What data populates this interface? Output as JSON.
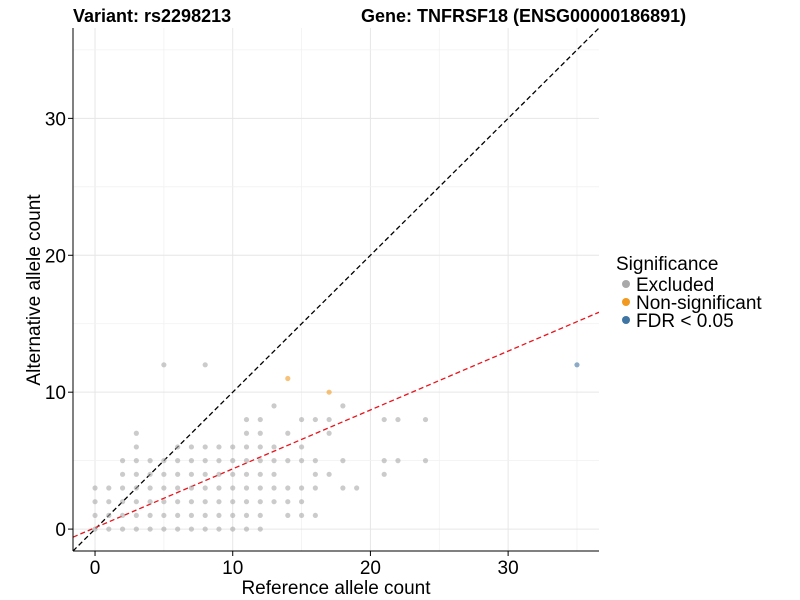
{
  "chart_data": {
    "type": "scatter",
    "title_left": "Variant: rs2298213",
    "title_right": "Gene: TNFRSF18 (ENSG00000186891)",
    "xlabel": "Reference allele count",
    "ylabel": "Alternative allele count",
    "xlim": [
      -1.6,
      36.6
    ],
    "ylim": [
      -1.6,
      36.6
    ],
    "xticks": [
      0,
      10,
      20,
      30
    ],
    "yticks": [
      0,
      10,
      20,
      30
    ],
    "grid": true,
    "legend": {
      "title": "Significance",
      "position": "right",
      "entries": [
        {
          "label": "Excluded",
          "color": "#a9a9a9"
        },
        {
          "label": "Non-significant",
          "color": "#f29a1f"
        },
        {
          "label": "FDR < 0.05",
          "color": "#3f75a3"
        }
      ]
    },
    "reference_lines": [
      {
        "name": "identity",
        "intercept": 0,
        "slope": 1,
        "color": "#000000",
        "style": "dashed"
      },
      {
        "name": "fit",
        "intercept": 0.1,
        "slope": 0.43,
        "color": "#e8141b",
        "style": "dashed"
      }
    ],
    "series": [
      {
        "name": "Excluded",
        "color": "#a9a9a9",
        "points": [
          [
            0,
            0
          ],
          [
            0,
            1
          ],
          [
            0,
            2
          ],
          [
            0,
            3
          ],
          [
            1,
            0
          ],
          [
            1,
            1
          ],
          [
            1,
            2
          ],
          [
            1,
            3
          ],
          [
            2,
            0
          ],
          [
            2,
            1
          ],
          [
            2,
            2
          ],
          [
            2,
            3
          ],
          [
            2,
            4
          ],
          [
            2,
            5
          ],
          [
            3,
            0
          ],
          [
            3,
            1
          ],
          [
            3,
            2
          ],
          [
            3,
            3
          ],
          [
            3,
            4
          ],
          [
            3,
            5
          ],
          [
            3,
            6
          ],
          [
            3,
            7
          ],
          [
            4,
            0
          ],
          [
            4,
            1
          ],
          [
            4,
            2
          ],
          [
            4,
            3
          ],
          [
            4,
            4
          ],
          [
            4,
            5
          ],
          [
            5,
            0
          ],
          [
            5,
            1
          ],
          [
            5,
            2
          ],
          [
            5,
            3
          ],
          [
            5,
            4
          ],
          [
            5,
            5
          ],
          [
            5,
            12
          ],
          [
            6,
            0
          ],
          [
            6,
            1
          ],
          [
            6,
            2
          ],
          [
            6,
            3
          ],
          [
            6,
            4
          ],
          [
            6,
            5
          ],
          [
            6,
            6
          ],
          [
            7,
            0
          ],
          [
            7,
            1
          ],
          [
            7,
            2
          ],
          [
            7,
            3
          ],
          [
            7,
            4
          ],
          [
            7,
            5
          ],
          [
            7,
            6
          ],
          [
            8,
            0
          ],
          [
            8,
            1
          ],
          [
            8,
            2
          ],
          [
            8,
            3
          ],
          [
            8,
            4
          ],
          [
            8,
            5
          ],
          [
            8,
            6
          ],
          [
            8,
            12
          ],
          [
            9,
            0
          ],
          [
            9,
            1
          ],
          [
            9,
            2
          ],
          [
            9,
            3
          ],
          [
            9,
            4
          ],
          [
            9,
            5
          ],
          [
            9,
            6
          ],
          [
            10,
            0
          ],
          [
            10,
            1
          ],
          [
            10,
            2
          ],
          [
            10,
            3
          ],
          [
            10,
            4
          ],
          [
            10,
            5
          ],
          [
            10,
            6
          ],
          [
            11,
            0
          ],
          [
            11,
            1
          ],
          [
            11,
            2
          ],
          [
            11,
            3
          ],
          [
            11,
            4
          ],
          [
            11,
            5
          ],
          [
            11,
            6
          ],
          [
            11,
            7
          ],
          [
            11,
            8
          ],
          [
            12,
            0
          ],
          [
            12,
            1
          ],
          [
            12,
            2
          ],
          [
            12,
            3
          ],
          [
            12,
            4
          ],
          [
            12,
            5
          ],
          [
            12,
            6
          ],
          [
            12,
            7
          ],
          [
            12,
            8
          ],
          [
            13,
            2
          ],
          [
            13,
            3
          ],
          [
            13,
            4
          ],
          [
            13,
            5
          ],
          [
            13,
            6
          ],
          [
            13,
            9
          ],
          [
            14,
            1
          ],
          [
            14,
            2
          ],
          [
            14,
            3
          ],
          [
            14,
            5
          ],
          [
            14,
            7
          ],
          [
            15,
            1
          ],
          [
            15,
            2
          ],
          [
            15,
            3
          ],
          [
            15,
            5
          ],
          [
            15,
            6
          ],
          [
            15,
            8
          ],
          [
            16,
            1
          ],
          [
            16,
            3
          ],
          [
            16,
            4
          ],
          [
            16,
            5
          ],
          [
            16,
            8
          ],
          [
            17,
            4
          ],
          [
            17,
            7
          ],
          [
            17,
            8
          ],
          [
            18,
            3
          ],
          [
            18,
            5
          ],
          [
            18,
            9
          ],
          [
            19,
            3
          ],
          [
            21,
            4
          ],
          [
            21,
            5
          ],
          [
            21,
            8
          ],
          [
            22,
            5
          ],
          [
            22,
            8
          ],
          [
            24,
            5
          ],
          [
            24,
            8
          ]
        ]
      },
      {
        "name": "Non-significant",
        "color": "#f29a1f",
        "points": [
          [
            14,
            11
          ],
          [
            17,
            10
          ]
        ]
      },
      {
        "name": "FDR < 0.05",
        "color": "#3f75a3",
        "points": [
          [
            35,
            12
          ]
        ]
      }
    ]
  }
}
